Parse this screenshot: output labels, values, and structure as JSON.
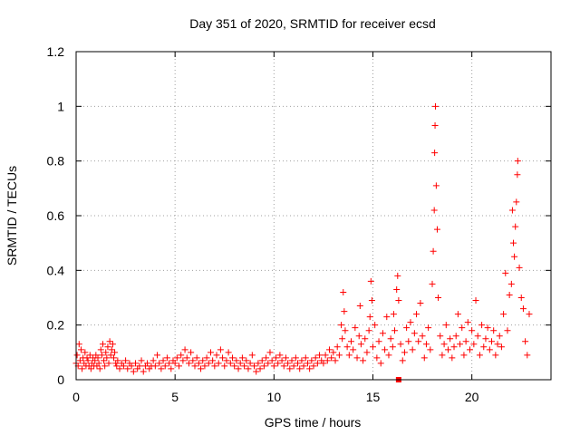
{
  "chart_data": {
    "type": "scatter",
    "title": "Day 351 of 2020, SRMTID for receiver ecsd",
    "xlabel": "GPS time / hours",
    "ylabel": "SRMTID / TECUs",
    "xlim": [
      0,
      24
    ],
    "ylim": [
      0,
      1.2
    ],
    "xticks": [
      0,
      5,
      10,
      15,
      20
    ],
    "yticks": [
      0,
      0.2,
      0.4,
      0.6,
      0.8,
      1,
      1.2
    ],
    "xtick_labels": [
      "0",
      "5",
      "10",
      "15",
      "20"
    ],
    "ytick_labels": [
      "0",
      "0.2",
      "0.4",
      "0.6",
      "0.8",
      "1",
      "1.2"
    ],
    "grid": true,
    "marker": "plus",
    "series_color": "#ff0000",
    "series": [
      {
        "name": "SRMTID",
        "points": [
          [
            0.0,
            0.06
          ],
          [
            0.05,
            0.09
          ],
          [
            0.1,
            0.05
          ],
          [
            0.15,
            0.13
          ],
          [
            0.2,
            0.07
          ],
          [
            0.25,
            0.11
          ],
          [
            0.3,
            0.04
          ],
          [
            0.35,
            0.08
          ],
          [
            0.4,
            0.06
          ],
          [
            0.45,
            0.1
          ],
          [
            0.5,
            0.05
          ],
          [
            0.55,
            0.08
          ],
          [
            0.6,
            0.07
          ],
          [
            0.65,
            0.05
          ],
          [
            0.7,
            0.09
          ],
          [
            0.75,
            0.04
          ],
          [
            0.8,
            0.06
          ],
          [
            0.85,
            0.08
          ],
          [
            0.9,
            0.05
          ],
          [
            0.95,
            0.07
          ],
          [
            1.0,
            0.09
          ],
          [
            1.05,
            0.05
          ],
          [
            1.1,
            0.08
          ],
          [
            1.15,
            0.06
          ],
          [
            1.2,
            0.04
          ],
          [
            1.25,
            0.11
          ],
          [
            1.3,
            0.09
          ],
          [
            1.35,
            0.13
          ],
          [
            1.4,
            0.07
          ],
          [
            1.45,
            0.05
          ],
          [
            1.5,
            0.1
          ],
          [
            1.55,
            0.08
          ],
          [
            1.6,
            0.12
          ],
          [
            1.65,
            0.06
          ],
          [
            1.7,
            0.14
          ],
          [
            1.75,
            0.09
          ],
          [
            1.8,
            0.11
          ],
          [
            1.85,
            0.13
          ],
          [
            1.9,
            0.08
          ],
          [
            1.95,
            0.1
          ],
          [
            2.0,
            0.06
          ],
          [
            2.05,
            0.05
          ],
          [
            2.1,
            0.07
          ],
          [
            2.2,
            0.04
          ],
          [
            2.3,
            0.06
          ],
          [
            2.4,
            0.05
          ],
          [
            2.5,
            0.07
          ],
          [
            2.6,
            0.04
          ],
          [
            2.7,
            0.06
          ],
          [
            2.8,
            0.05
          ],
          [
            2.9,
            0.03
          ],
          [
            3.0,
            0.06
          ],
          [
            3.1,
            0.04
          ],
          [
            3.2,
            0.05
          ],
          [
            3.3,
            0.07
          ],
          [
            3.4,
            0.03
          ],
          [
            3.5,
            0.05
          ],
          [
            3.6,
            0.06
          ],
          [
            3.7,
            0.04
          ],
          [
            3.8,
            0.05
          ],
          [
            3.9,
            0.07
          ],
          [
            4.0,
            0.05
          ],
          [
            4.1,
            0.09
          ],
          [
            4.2,
            0.06
          ],
          [
            4.3,
            0.04
          ],
          [
            4.4,
            0.07
          ],
          [
            4.5,
            0.05
          ],
          [
            4.6,
            0.08
          ],
          [
            4.7,
            0.06
          ],
          [
            4.8,
            0.04
          ],
          [
            4.9,
            0.07
          ],
          [
            5.0,
            0.06
          ],
          [
            5.1,
            0.08
          ],
          [
            5.2,
            0.05
          ],
          [
            5.3,
            0.09
          ],
          [
            5.4,
            0.07
          ],
          [
            5.5,
            0.11
          ],
          [
            5.6,
            0.08
          ],
          [
            5.7,
            0.06
          ],
          [
            5.8,
            0.1
          ],
          [
            5.9,
            0.07
          ],
          [
            6.0,
            0.05
          ],
          [
            6.1,
            0.08
          ],
          [
            6.2,
            0.06
          ],
          [
            6.3,
            0.04
          ],
          [
            6.4,
            0.07
          ],
          [
            6.5,
            0.05
          ],
          [
            6.6,
            0.08
          ],
          [
            6.7,
            0.06
          ],
          [
            6.8,
            0.1
          ],
          [
            6.9,
            0.07
          ],
          [
            7.0,
            0.05
          ],
          [
            7.1,
            0.09
          ],
          [
            7.2,
            0.06
          ],
          [
            7.3,
            0.11
          ],
          [
            7.4,
            0.08
          ],
          [
            7.5,
            0.05
          ],
          [
            7.6,
            0.07
          ],
          [
            7.7,
            0.1
          ],
          [
            7.8,
            0.06
          ],
          [
            7.9,
            0.08
          ],
          [
            8.0,
            0.05
          ],
          [
            8.1,
            0.07
          ],
          [
            8.2,
            0.04
          ],
          [
            8.3,
            0.06
          ],
          [
            8.4,
            0.08
          ],
          [
            8.5,
            0.05
          ],
          [
            8.6,
            0.07
          ],
          [
            8.7,
            0.04
          ],
          [
            8.8,
            0.06
          ],
          [
            8.9,
            0.09
          ],
          [
            9.0,
            0.05
          ],
          [
            9.1,
            0.03
          ],
          [
            9.2,
            0.06
          ],
          [
            9.3,
            0.04
          ],
          [
            9.4,
            0.07
          ],
          [
            9.5,
            0.05
          ],
          [
            9.6,
            0.08
          ],
          [
            9.7,
            0.06
          ],
          [
            9.8,
            0.1
          ],
          [
            9.9,
            0.07
          ],
          [
            10.0,
            0.05
          ],
          [
            10.1,
            0.08
          ],
          [
            10.2,
            0.06
          ],
          [
            10.3,
            0.09
          ],
          [
            10.4,
            0.07
          ],
          [
            10.5,
            0.05
          ],
          [
            10.6,
            0.08
          ],
          [
            10.7,
            0.06
          ],
          [
            10.8,
            0.04
          ],
          [
            10.9,
            0.07
          ],
          [
            11.0,
            0.05
          ],
          [
            11.1,
            0.08
          ],
          [
            11.2,
            0.06
          ],
          [
            11.3,
            0.04
          ],
          [
            11.4,
            0.07
          ],
          [
            11.5,
            0.05
          ],
          [
            11.6,
            0.08
          ],
          [
            11.7,
            0.06
          ],
          [
            11.8,
            0.04
          ],
          [
            11.9,
            0.07
          ],
          [
            12.0,
            0.05
          ],
          [
            12.1,
            0.08
          ],
          [
            12.2,
            0.06
          ],
          [
            12.3,
            0.09
          ],
          [
            12.4,
            0.07
          ],
          [
            12.5,
            0.06
          ],
          [
            12.6,
            0.09
          ],
          [
            12.7,
            0.07
          ],
          [
            12.8,
            0.11
          ],
          [
            12.9,
            0.08
          ],
          [
            13.0,
            0.1
          ],
          [
            13.1,
            0.07
          ],
          [
            13.2,
            0.12
          ],
          [
            13.3,
            0.09
          ],
          [
            13.4,
            0.2
          ],
          [
            13.45,
            0.15
          ],
          [
            13.5,
            0.32
          ],
          [
            13.55,
            0.25
          ],
          [
            13.6,
            0.18
          ],
          [
            13.7,
            0.12
          ],
          [
            13.8,
            0.09
          ],
          [
            13.9,
            0.14
          ],
          [
            14.0,
            0.11
          ],
          [
            14.1,
            0.19
          ],
          [
            14.2,
            0.08
          ],
          [
            14.3,
            0.16
          ],
          [
            14.35,
            0.27
          ],
          [
            14.4,
            0.13
          ],
          [
            14.5,
            0.07
          ],
          [
            14.6,
            0.15
          ],
          [
            14.7,
            0.1
          ],
          [
            14.8,
            0.18
          ],
          [
            14.85,
            0.23
          ],
          [
            14.9,
            0.36
          ],
          [
            14.95,
            0.29
          ],
          [
            15.0,
            0.12
          ],
          [
            15.1,
            0.2
          ],
          [
            15.2,
            0.08
          ],
          [
            15.3,
            0.14
          ],
          [
            15.4,
            0.06
          ],
          [
            15.5,
            0.17
          ],
          [
            15.6,
            0.11
          ],
          [
            15.7,
            0.23
          ],
          [
            15.8,
            0.09
          ],
          [
            15.9,
            0.15
          ],
          [
            16.0,
            0.12
          ],
          [
            16.05,
            0.24
          ],
          [
            16.1,
            0.18
          ],
          [
            16.2,
            0.33
          ],
          [
            16.25,
            0.38
          ],
          [
            16.3,
            0.29
          ],
          [
            16.4,
            0.13
          ],
          [
            16.5,
            0.07
          ],
          [
            16.6,
            0.1
          ],
          [
            16.7,
            0.19
          ],
          [
            16.8,
            0.14
          ],
          [
            16.9,
            0.21
          ],
          [
            17.0,
            0.11
          ],
          [
            17.1,
            0.17
          ],
          [
            17.2,
            0.24
          ],
          [
            17.3,
            0.14
          ],
          [
            17.4,
            0.28
          ],
          [
            17.5,
            0.16
          ],
          [
            17.6,
            0.08
          ],
          [
            17.7,
            0.13
          ],
          [
            17.8,
            0.19
          ],
          [
            17.9,
            0.11
          ],
          [
            18.0,
            0.35
          ],
          [
            18.05,
            0.47
          ],
          [
            18.1,
            0.62
          ],
          [
            18.12,
            0.83
          ],
          [
            18.14,
            0.93
          ],
          [
            18.16,
            1.0
          ],
          [
            18.2,
            0.71
          ],
          [
            18.25,
            0.55
          ],
          [
            18.3,
            0.3
          ],
          [
            18.4,
            0.16
          ],
          [
            18.5,
            0.09
          ],
          [
            18.6,
            0.13
          ],
          [
            18.7,
            0.2
          ],
          [
            18.8,
            0.11
          ],
          [
            18.9,
            0.15
          ],
          [
            19.0,
            0.08
          ],
          [
            19.1,
            0.12
          ],
          [
            19.2,
            0.16
          ],
          [
            19.3,
            0.24
          ],
          [
            19.4,
            0.13
          ],
          [
            19.5,
            0.19
          ],
          [
            19.6,
            0.09
          ],
          [
            19.7,
            0.14
          ],
          [
            19.8,
            0.21
          ],
          [
            19.9,
            0.11
          ],
          [
            20.0,
            0.18
          ],
          [
            20.1,
            0.13
          ],
          [
            20.2,
            0.29
          ],
          [
            20.3,
            0.16
          ],
          [
            20.4,
            0.09
          ],
          [
            20.5,
            0.2
          ],
          [
            20.6,
            0.12
          ],
          [
            20.7,
            0.15
          ],
          [
            20.8,
            0.19
          ],
          [
            20.9,
            0.11
          ],
          [
            21.0,
            0.14
          ],
          [
            21.1,
            0.18
          ],
          [
            21.2,
            0.09
          ],
          [
            21.3,
            0.13
          ],
          [
            21.4,
            0.16
          ],
          [
            21.5,
            0.12
          ],
          [
            21.6,
            0.24
          ],
          [
            21.7,
            0.39
          ],
          [
            21.8,
            0.18
          ],
          [
            21.9,
            0.31
          ],
          [
            22.0,
            0.35
          ],
          [
            22.05,
            0.62
          ],
          [
            22.1,
            0.5
          ],
          [
            22.15,
            0.45
          ],
          [
            22.2,
            0.56
          ],
          [
            22.25,
            0.65
          ],
          [
            22.3,
            0.75
          ],
          [
            22.32,
            0.8
          ],
          [
            22.4,
            0.41
          ],
          [
            22.5,
            0.3
          ],
          [
            22.6,
            0.26
          ],
          [
            22.7,
            0.14
          ],
          [
            22.8,
            0.09
          ],
          [
            22.9,
            0.24
          ]
        ]
      }
    ],
    "annotations": [
      {
        "type": "square-marker",
        "x": 16.3,
        "y": 0.0
      }
    ]
  }
}
